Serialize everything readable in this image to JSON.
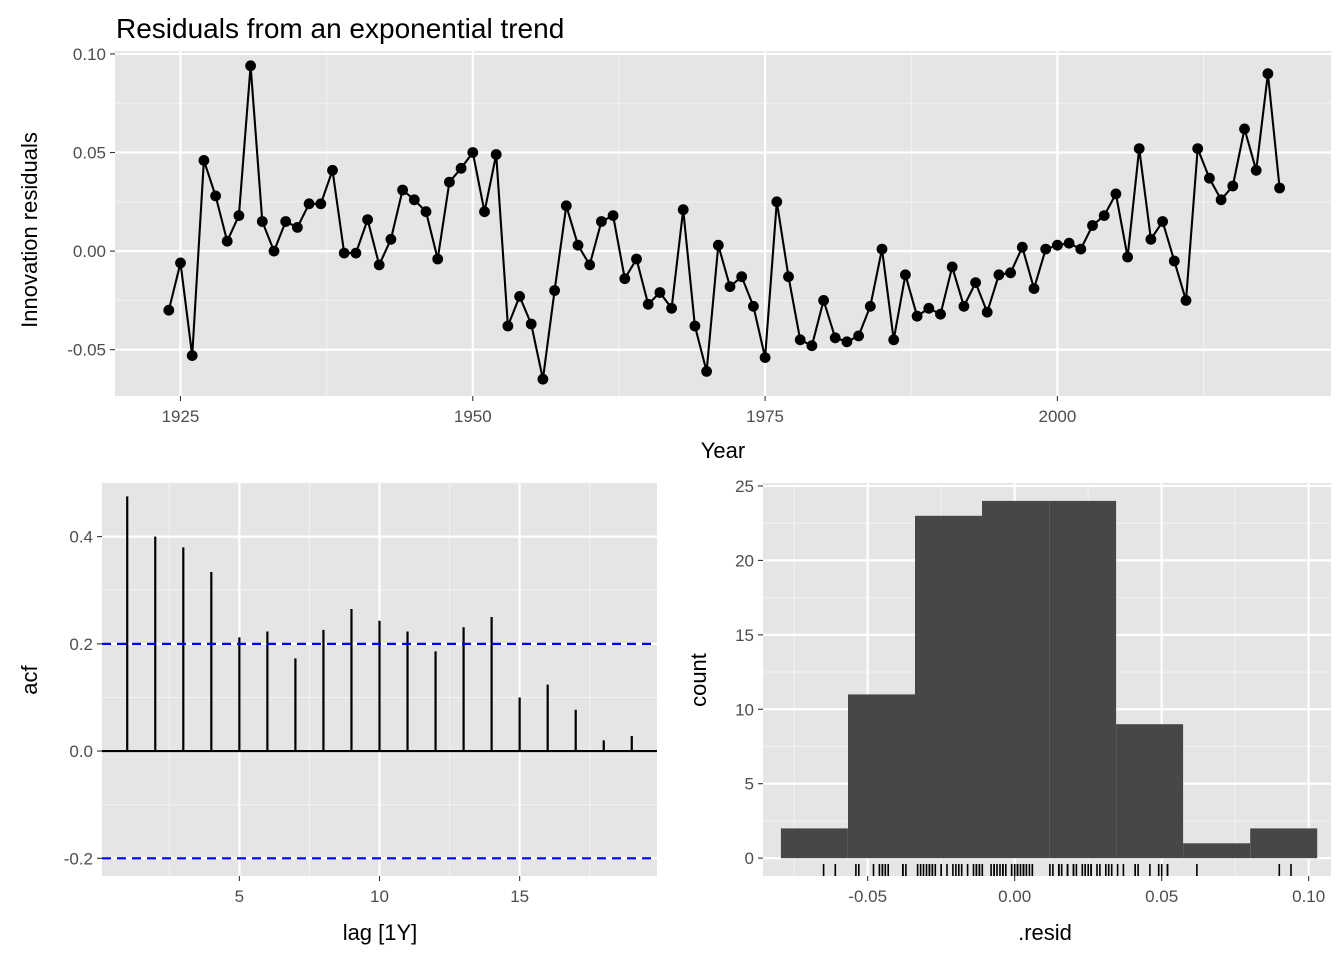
{
  "chart_data": [
    {
      "type": "line",
      "title": "Residuals from an exponential trend",
      "xlabel": "Year",
      "ylabel": "Innovation residuals",
      "xlim": [
        1919.4,
        2023.4
      ],
      "ylim": [
        -0.0735,
        0.1015
      ],
      "xticks": [
        {
          "value": 1925,
          "label": "1925"
        },
        {
          "value": 1950,
          "label": "1950"
        },
        {
          "value": 1975,
          "label": "1975"
        },
        {
          "value": 2000,
          "label": "2000"
        }
      ],
      "yticks": [
        {
          "value": -0.05,
          "label": "-0.05"
        },
        {
          "value": 0.0,
          "label": "0.00"
        },
        {
          "value": 0.05,
          "label": "0.05"
        },
        {
          "value": 0.1,
          "label": "0.10"
        }
      ],
      "grid": true,
      "x": [
        1924,
        1925,
        1926,
        1927,
        1928,
        1929,
        1930,
        1931,
        1932,
        1933,
        1934,
        1935,
        1936,
        1937,
        1938,
        1939,
        1940,
        1941,
        1942,
        1943,
        1944,
        1945,
        1946,
        1947,
        1948,
        1949,
        1950,
        1951,
        1952,
        1953,
        1954,
        1955,
        1956,
        1957,
        1958,
        1959,
        1960,
        1961,
        1962,
        1963,
        1964,
        1965,
        1966,
        1967,
        1968,
        1969,
        1970,
        1971,
        1972,
        1973,
        1974,
        1975,
        1976,
        1977,
        1978,
        1979,
        1980,
        1981,
        1982,
        1983,
        1984,
        1985,
        1986,
        1987,
        1988,
        1989,
        1990,
        1991,
        1992,
        1993,
        1994,
        1995,
        1996,
        1997,
        1998,
        1999,
        2000,
        2001,
        2002,
        2003,
        2004,
        2005,
        2006,
        2007,
        2008,
        2009,
        2010,
        2011,
        2012,
        2013,
        2014,
        2015,
        2016,
        2017,
        2018,
        2019
      ],
      "y": [
        -0.03,
        -0.006,
        -0.053,
        0.046,
        0.028,
        0.005,
        0.018,
        0.094,
        0.015,
        0.0,
        0.015,
        0.012,
        0.024,
        0.024,
        0.041,
        -0.001,
        -0.001,
        0.016,
        -0.007,
        0.006,
        0.031,
        0.026,
        0.02,
        -0.004,
        0.035,
        0.042,
        0.05,
        0.02,
        0.049,
        -0.038,
        -0.023,
        -0.037,
        -0.065,
        -0.02,
        0.023,
        0.003,
        -0.007,
        0.015,
        0.018,
        -0.014,
        -0.004,
        -0.027,
        -0.021,
        -0.029,
        0.021,
        -0.038,
        -0.061,
        0.003,
        -0.018,
        -0.013,
        -0.028,
        -0.054,
        0.025,
        -0.013,
        -0.045,
        -0.048,
        -0.025,
        -0.044,
        -0.046,
        -0.043,
        -0.028,
        0.001,
        -0.045,
        -0.012,
        -0.033,
        -0.029,
        -0.032,
        -0.008,
        -0.028,
        -0.016,
        -0.031,
        -0.012,
        -0.011,
        0.002,
        -0.019,
        0.001,
        0.003,
        0.004,
        0.001,
        0.013,
        0.018,
        0.029,
        -0.003,
        0.052,
        0.006,
        0.015,
        -0.005,
        -0.025,
        0.052,
        0.037,
        0.026,
        0.033,
        0.062,
        0.041,
        0.09,
        0.032
      ]
    },
    {
      "type": "bar",
      "subtype": "acf",
      "xlabel": "lag [1Y]",
      "ylabel": "acf",
      "xlim": [
        0.1,
        19.9
      ],
      "ylim": [
        -0.233,
        0.5
      ],
      "xticks": [
        {
          "value": 5,
          "label": "5"
        },
        {
          "value": 10,
          "label": "10"
        },
        {
          "value": 15,
          "label": "15"
        }
      ],
      "yticks": [
        {
          "value": -0.2,
          "label": "-0.2"
        },
        {
          "value": 0.0,
          "label": "0.0"
        },
        {
          "value": 0.2,
          "label": "0.2"
        },
        {
          "value": 0.4,
          "label": "0.4"
        }
      ],
      "grid": true,
      "lags": [
        1,
        2,
        3,
        4,
        5,
        6,
        7,
        8,
        9,
        10,
        11,
        12,
        13,
        14,
        15,
        16,
        17,
        18,
        19
      ],
      "values": [
        0.475,
        0.4,
        0.38,
        0.334,
        0.212,
        0.223,
        0.173,
        0.226,
        0.265,
        0.243,
        0.223,
        0.186,
        0.231,
        0.25,
        0.1,
        0.124,
        0.077,
        0.02,
        0.028
      ],
      "significance_bounds": [
        0.2,
        -0.2
      ],
      "bound_color": "#0000ff"
    },
    {
      "type": "bar",
      "subtype": "histogram",
      "xlabel": ".resid",
      "ylabel": "count",
      "xlim": [
        -0.0856,
        0.1076
      ],
      "ylim": [
        -1.2,
        25.2
      ],
      "xticks": [
        {
          "value": -0.05,
          "label": "-0.05"
        },
        {
          "value": 0.0,
          "label": "0.00"
        },
        {
          "value": 0.05,
          "label": "0.05"
        },
        {
          "value": 0.1,
          "label": "0.10"
        }
      ],
      "yticks": [
        {
          "value": 0,
          "label": "0"
        },
        {
          "value": 5,
          "label": "5"
        },
        {
          "value": 10,
          "label": "10"
        },
        {
          "value": 15,
          "label": "15"
        },
        {
          "value": 20,
          "label": "20"
        },
        {
          "value": 25,
          "label": "25"
        }
      ],
      "grid": true,
      "bins": [
        {
          "start": -0.0795,
          "end": -0.0567,
          "count": 2
        },
        {
          "start": -0.0567,
          "end": -0.0339,
          "count": 11
        },
        {
          "start": -0.0339,
          "end": -0.0111,
          "count": 23
        },
        {
          "start": -0.0111,
          "end": 0.0117,
          "count": 24
        },
        {
          "start": 0.0117,
          "end": 0.0345,
          "count": 24
        },
        {
          "start": 0.0345,
          "end": 0.0573,
          "count": 9
        },
        {
          "start": 0.0573,
          "end": 0.0801,
          "count": 1
        },
        {
          "start": 0.0801,
          "end": 0.1029,
          "count": 2
        }
      ],
      "bar_color": "#474747",
      "rug": true
    }
  ]
}
